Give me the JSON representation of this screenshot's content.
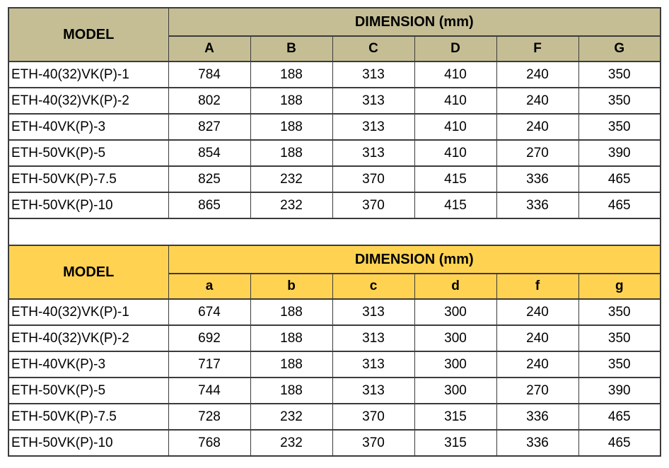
{
  "colors": {
    "table1_header_bg": "#C5BE95",
    "table2_header_bg": "#FFD351",
    "border": "#3B3B3B",
    "row_bg": "#FFFFFF",
    "text": "#000000"
  },
  "table1": {
    "model_header": "MODEL",
    "dimension_header": "DIMENSION (mm)",
    "columns": [
      "A",
      "B",
      "C",
      "D",
      "F",
      "G"
    ],
    "rows": [
      {
        "model": "ETH-40(32)VK(P)-1",
        "values": [
          "784",
          "188",
          "313",
          "410",
          "240",
          "350"
        ]
      },
      {
        "model": "ETH-40(32)VK(P)-2",
        "values": [
          "802",
          "188",
          "313",
          "410",
          "240",
          "350"
        ]
      },
      {
        "model": "ETH-40VK(P)-3",
        "values": [
          "827",
          "188",
          "313",
          "410",
          "240",
          "350"
        ]
      },
      {
        "model": "ETH-50VK(P)-5",
        "values": [
          "854",
          "188",
          "313",
          "410",
          "270",
          "390"
        ]
      },
      {
        "model": "ETH-50VK(P)-7.5",
        "values": [
          "825",
          "232",
          "370",
          "415",
          "336",
          "465"
        ]
      },
      {
        "model": "ETH-50VK(P)-10",
        "values": [
          "865",
          "232",
          "370",
          "415",
          "336",
          "465"
        ]
      }
    ]
  },
  "table2": {
    "model_header": "MODEL",
    "dimension_header": "DIMENSION (mm)",
    "columns": [
      "a",
      "b",
      "c",
      "d",
      "f",
      "g"
    ],
    "rows": [
      {
        "model": "ETH-40(32)VK(P)-1",
        "values": [
          "674",
          "188",
          "313",
          "300",
          "240",
          "350"
        ]
      },
      {
        "model": "ETH-40(32)VK(P)-2",
        "values": [
          "692",
          "188",
          "313",
          "300",
          "240",
          "350"
        ]
      },
      {
        "model": "ETH-40VK(P)-3",
        "values": [
          "717",
          "188",
          "313",
          "300",
          "240",
          "350"
        ]
      },
      {
        "model": "ETH-50VK(P)-5",
        "values": [
          "744",
          "188",
          "313",
          "300",
          "270",
          "390"
        ]
      },
      {
        "model": "ETH-50VK(P)-7.5",
        "values": [
          "728",
          "232",
          "370",
          "315",
          "336",
          "465"
        ]
      },
      {
        "model": "ETH-50VK(P)-10",
        "values": [
          "768",
          "232",
          "370",
          "315",
          "336",
          "465"
        ]
      }
    ]
  }
}
